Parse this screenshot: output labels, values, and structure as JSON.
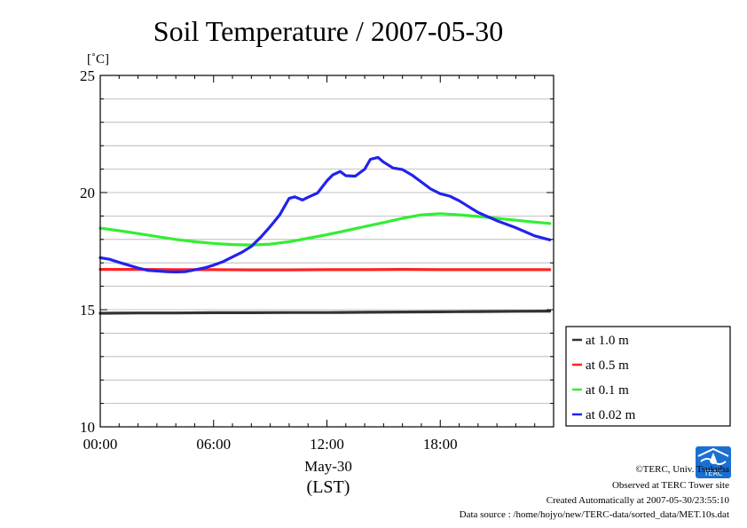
{
  "chart_data": {
    "type": "line",
    "title": "Soil Temperature / 2007-05-30",
    "ylabel": "[˚C]",
    "xlabel_date": "May-30",
    "xlabel_tz": "(LST)",
    "ylim": [
      10,
      25
    ],
    "xlim": [
      0,
      24
    ],
    "y_ticks": [
      10,
      15,
      20,
      25
    ],
    "y_tick_labels": [
      "10",
      "15",
      "20",
      "25"
    ],
    "x_ticks": [
      0,
      6,
      12,
      18
    ],
    "x_tick_labels": [
      "00:00",
      "06:00",
      "12:00",
      "18:00"
    ],
    "grid": true,
    "legend_position": "right",
    "series": [
      {
        "name": "at 1.0 m",
        "color": "#333333",
        "x": [
          0,
          2,
          4,
          6,
          8,
          10,
          12,
          14,
          16,
          18,
          20,
          22,
          23.8
        ],
        "y": [
          14.85,
          14.86,
          14.86,
          14.87,
          14.87,
          14.88,
          14.88,
          14.89,
          14.9,
          14.91,
          14.92,
          14.93,
          14.94
        ]
      },
      {
        "name": "at 0.5 m",
        "color": "#ff2222",
        "x": [
          0,
          2,
          4,
          6,
          8,
          10,
          12,
          14,
          16,
          18,
          20,
          22,
          23.8
        ],
        "y": [
          16.72,
          16.72,
          16.71,
          16.71,
          16.7,
          16.7,
          16.71,
          16.71,
          16.72,
          16.71,
          16.71,
          16.71,
          16.71
        ]
      },
      {
        "name": "at 0.1 m",
        "color": "#33ee33",
        "x": [
          0,
          1,
          2,
          3,
          4,
          5,
          6,
          7,
          8,
          9,
          10,
          11,
          12,
          13,
          14,
          15,
          16,
          17,
          18,
          19,
          20,
          21,
          22,
          23,
          23.8
        ],
        "y": [
          18.48,
          18.37,
          18.25,
          18.12,
          18.0,
          17.9,
          17.83,
          17.78,
          17.76,
          17.8,
          17.9,
          18.05,
          18.2,
          18.37,
          18.55,
          18.72,
          18.9,
          19.05,
          19.1,
          19.05,
          18.98,
          18.9,
          18.82,
          18.74,
          18.68
        ]
      },
      {
        "name": "at 0.02 m",
        "color": "#2222ee",
        "x": [
          0,
          0.5,
          1,
          1.5,
          2,
          2.5,
          3,
          3.5,
          4,
          4.5,
          5,
          5.5,
          6,
          6.5,
          7,
          7.5,
          8,
          8.5,
          9,
          9.5,
          10,
          10.3,
          10.7,
          11,
          11.5,
          12,
          12.3,
          12.7,
          13,
          13.5,
          14,
          14.3,
          14.7,
          15,
          15.5,
          16,
          16.5,
          17,
          17.5,
          18,
          18.5,
          19,
          19.5,
          20,
          21,
          22,
          23,
          23.8
        ],
        "y": [
          17.22,
          17.15,
          17.02,
          16.9,
          16.78,
          16.68,
          16.65,
          16.62,
          16.61,
          16.62,
          16.7,
          16.78,
          16.9,
          17.05,
          17.25,
          17.45,
          17.7,
          18.1,
          18.55,
          19.05,
          19.75,
          19.82,
          19.68,
          19.8,
          19.98,
          20.5,
          20.75,
          20.9,
          20.72,
          20.7,
          21.0,
          21.42,
          21.5,
          21.3,
          21.05,
          20.98,
          20.75,
          20.45,
          20.15,
          19.95,
          19.85,
          19.65,
          19.4,
          19.15,
          18.8,
          18.5,
          18.15,
          17.98
        ]
      }
    ]
  },
  "credits": {
    "copyright": "©TERC, Univ. Tsukuba",
    "observed": "Observed at TERC Tower site",
    "created": "Created Automatically at 2007-05-30/23:55:10",
    "source": "Data source : /home/hojyo/new/TERC-data/sorted_data/MET.10s.dat"
  },
  "logo": {
    "text": "TERC",
    "color": "#1a6fd0",
    "icon": "terc-logo-icon"
  }
}
